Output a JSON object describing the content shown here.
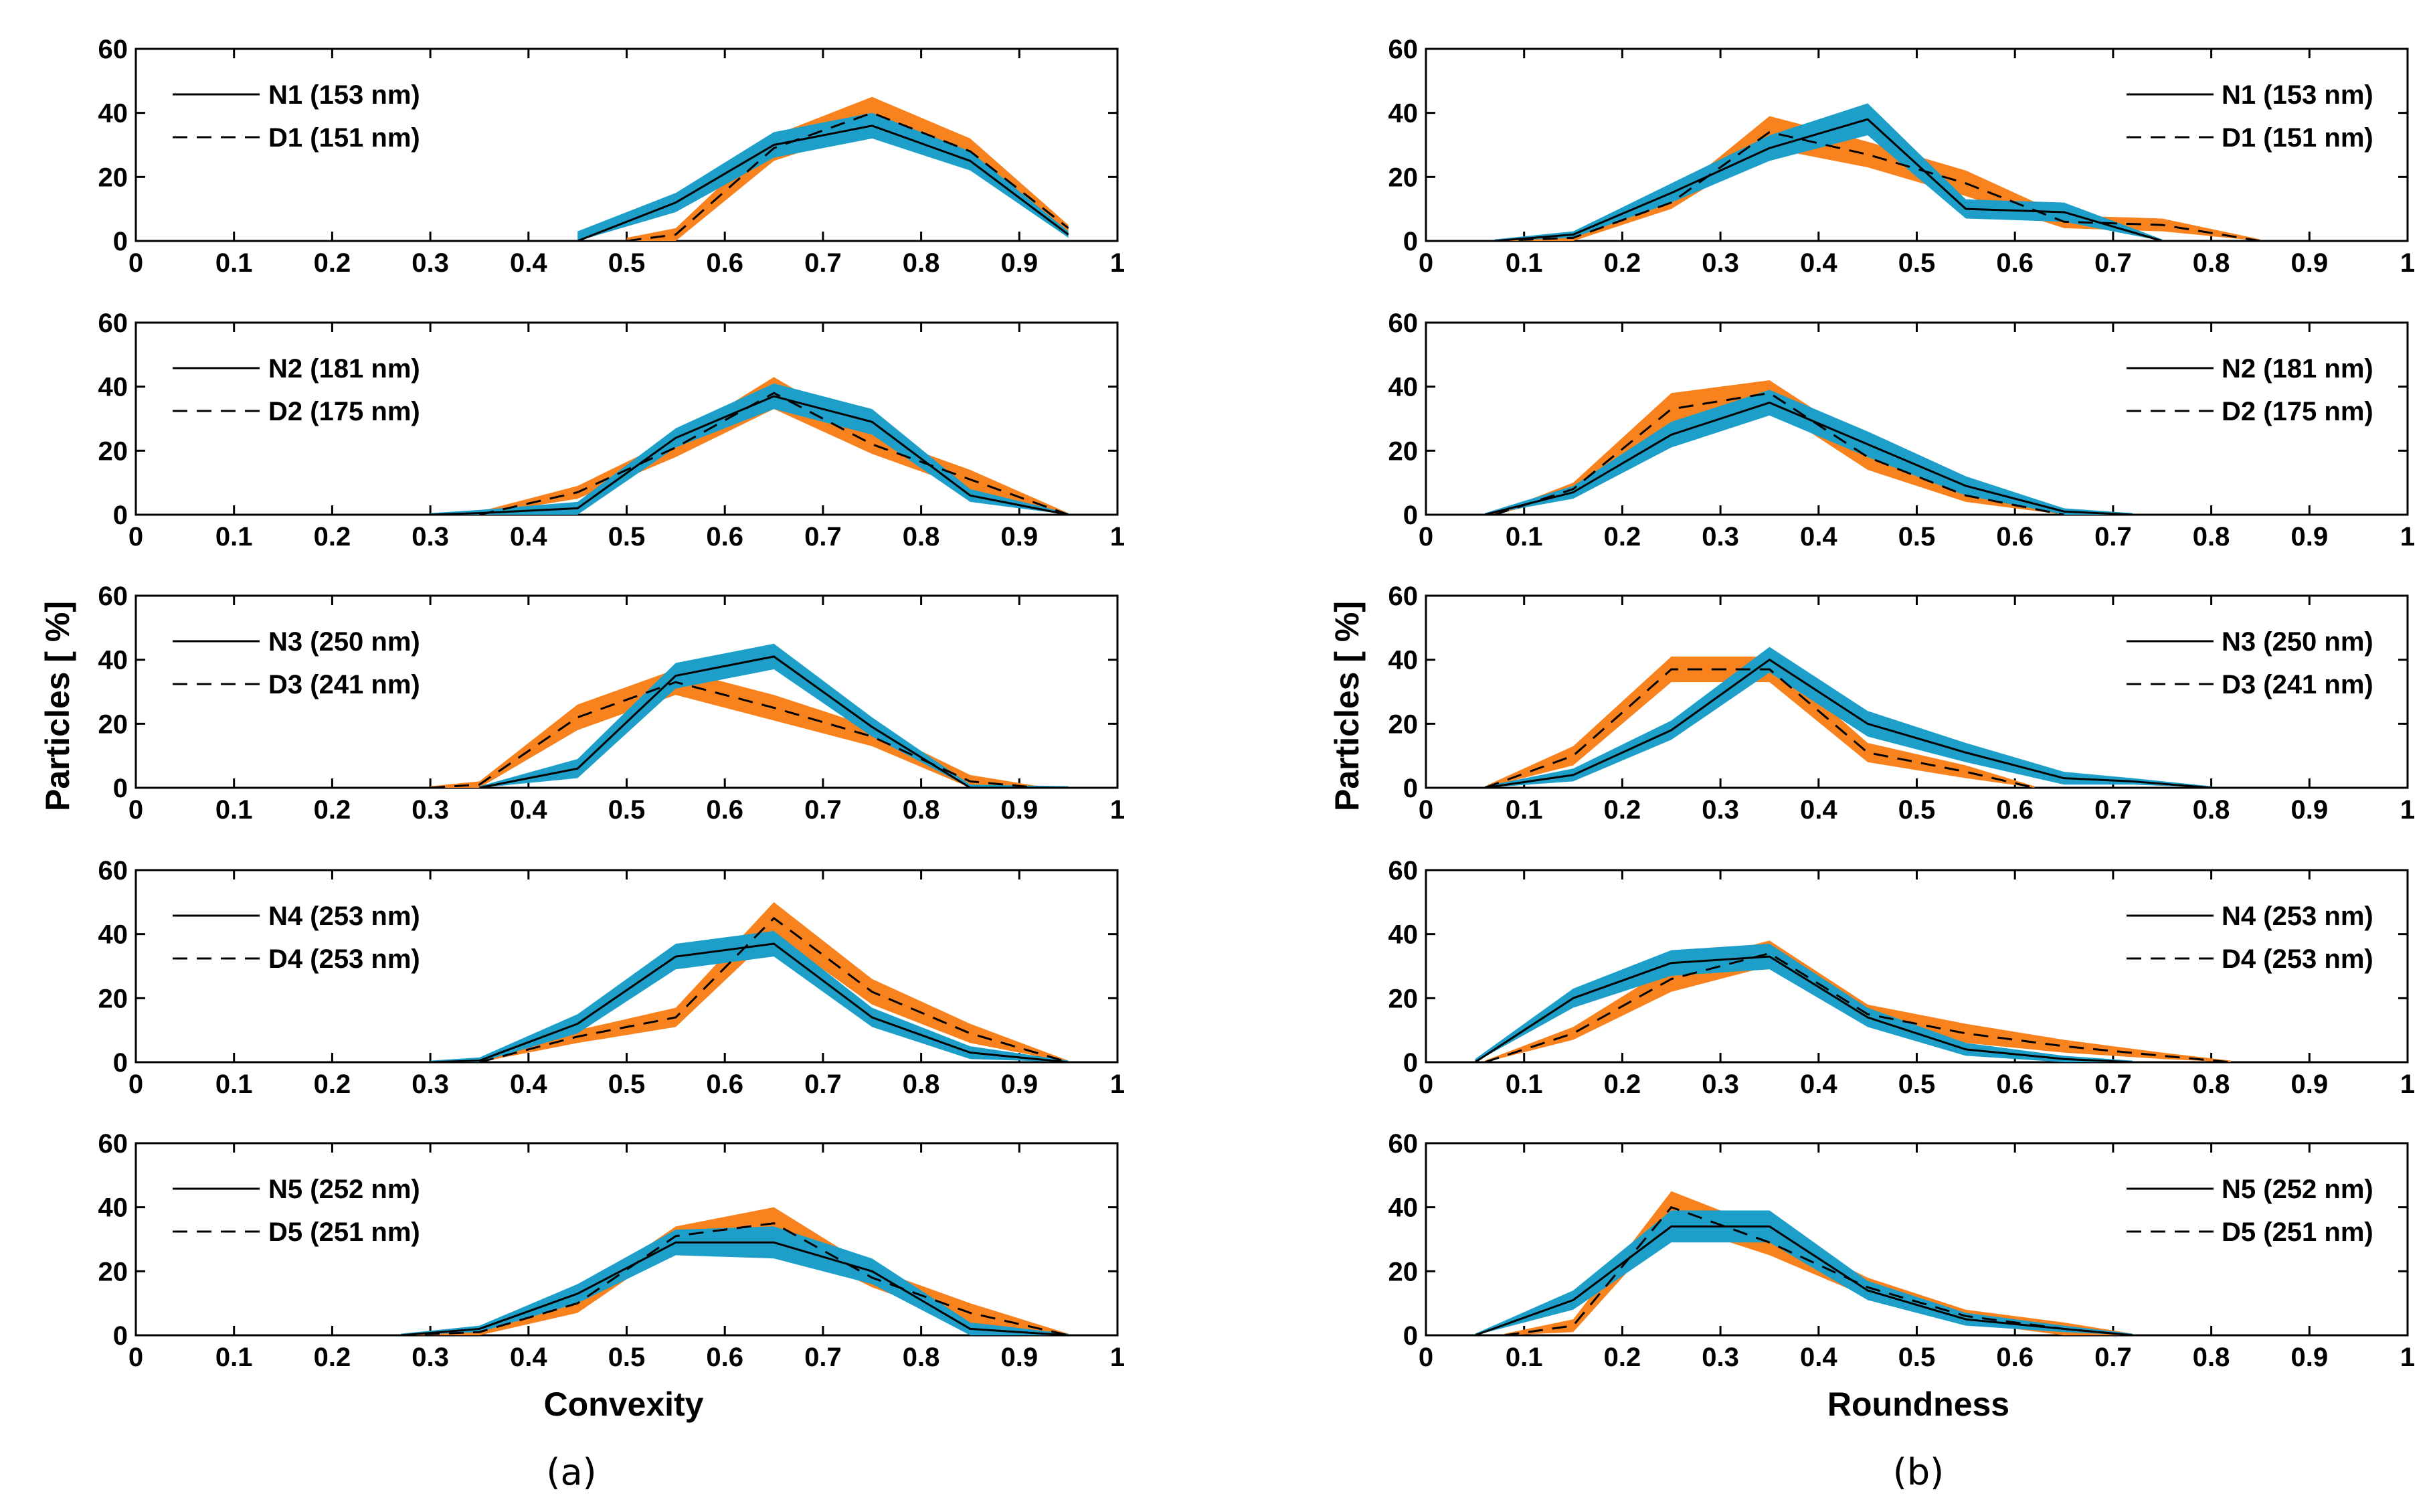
{
  "figure": {
    "left_panel_label": "(a)",
    "right_panel_label": "(b)"
  },
  "colors": {
    "N_band": "#1e9fc9",
    "D_band": "#f7821e",
    "line": "#000000"
  },
  "chart_data": [
    {
      "type": "line",
      "panel": "a",
      "xlabel": "Convexity",
      "ylabel": "Particles [ %]",
      "xlim": [
        0,
        1
      ],
      "ylim": [
        0,
        60
      ],
      "xticks": [
        "0",
        "0.1",
        "0.2",
        "0.3",
        "0.4",
        "0.5",
        "0.6",
        "0.7",
        "0.8",
        "0.9",
        "1"
      ],
      "yticks": [
        "0",
        "20",
        "40",
        "60"
      ],
      "subplots": [
        {
          "legend": [
            "N1 (153 nm)",
            "D1 (151 nm)"
          ],
          "series": [
            {
              "name": "N1 (153 nm)",
              "style": "solid",
              "x": [
                0.45,
                0.55,
                0.65,
                0.75,
                0.85,
                0.95
              ],
              "values": [
                0,
                12,
                30,
                36,
                25,
                2
              ],
              "band": [
                3,
                3,
                4,
                4,
                3,
                1
              ]
            },
            {
              "name": "D1 (151 nm)",
              "style": "dashed",
              "x": [
                0.5,
                0.55,
                0.65,
                0.75,
                0.85,
                0.95
              ],
              "values": [
                0,
                2,
                29,
                40,
                28,
                4
              ],
              "band": [
                1,
                2,
                4,
                5,
                4,
                1
              ]
            }
          ]
        },
        {
          "legend": [
            "N2 (181 nm)",
            "D2 (175 nm)"
          ],
          "series": [
            {
              "name": "N2 (181 nm)",
              "style": "solid",
              "x": [
                0.3,
                0.35,
                0.45,
                0.55,
                0.65,
                0.75,
                0.85,
                0.95
              ],
              "values": [
                0,
                0.5,
                2,
                24,
                37,
                29,
                6,
                0
              ],
              "band": [
                0.5,
                1,
                2,
                3,
                4,
                4,
                2,
                0.5
              ]
            },
            {
              "name": "D2 (175 nm)",
              "style": "dashed",
              "x": [
                0.35,
                0.45,
                0.55,
                0.65,
                0.75,
                0.85,
                0.95
              ],
              "values": [
                0,
                7,
                21,
                38,
                22,
                11,
                0
              ],
              "band": [
                1,
                2,
                3,
                5,
                3,
                3,
                0.5
              ]
            }
          ]
        },
        {
          "legend": [
            "N3 (250 nm)",
            "D3 (241 nm)"
          ],
          "series": [
            {
              "name": "N3 (250 nm)",
              "style": "solid",
              "x": [
                0.35,
                0.45,
                0.55,
                0.65,
                0.75,
                0.85,
                0.95
              ],
              "values": [
                0,
                6,
                35,
                41,
                19,
                0,
                0
              ],
              "band": [
                0.5,
                3,
                4,
                4,
                3,
                1,
                0.5
              ]
            },
            {
              "name": "D3 (241 nm)",
              "style": "dashed",
              "x": [
                0.3,
                0.35,
                0.45,
                0.55,
                0.65,
                0.75,
                0.85,
                0.92
              ],
              "values": [
                0,
                1,
                22,
                33,
                25,
                16,
                2,
                0
              ],
              "band": [
                0.5,
                1,
                4,
                4,
                4,
                3,
                2,
                0.5
              ]
            }
          ]
        },
        {
          "legend": [
            "N4 (253 nm)",
            "D4 (253 nm)"
          ],
          "series": [
            {
              "name": "N4 (253 nm)",
              "style": "solid",
              "x": [
                0.3,
                0.35,
                0.45,
                0.55,
                0.65,
                0.75,
                0.85,
                0.95
              ],
              "values": [
                0,
                0.5,
                12,
                33,
                37,
                14,
                3,
                0
              ],
              "band": [
                0.5,
                1,
                3,
                4,
                4,
                3,
                2,
                0.5
              ]
            },
            {
              "name": "D4 (253 nm)",
              "style": "dashed",
              "x": [
                0.35,
                0.45,
                0.55,
                0.65,
                0.75,
                0.85,
                0.95
              ],
              "values": [
                0,
                8,
                14,
                45,
                22,
                9,
                0
              ],
              "band": [
                1,
                2,
                3,
                5,
                4,
                3,
                0.5
              ]
            }
          ]
        },
        {
          "legend": [
            "N5 (252 nm)",
            "D5 (251 nm)"
          ],
          "series": [
            {
              "name": "N5 (252 nm)",
              "style": "solid",
              "x": [
                0.27,
                0.35,
                0.45,
                0.55,
                0.65,
                0.75,
                0.85,
                0.95
              ],
              "values": [
                0,
                2,
                13,
                29,
                29,
                20,
                2,
                0
              ],
              "band": [
                0.5,
                1,
                3,
                4,
                5,
                4,
                2,
                0.5
              ]
            },
            {
              "name": "D5 (251 nm)",
              "style": "dashed",
              "x": [
                0.27,
                0.35,
                0.45,
                0.55,
                0.65,
                0.75,
                0.85,
                0.95
              ],
              "values": [
                0,
                1,
                10,
                31,
                35,
                18,
                7,
                0
              ],
              "band": [
                0.5,
                1,
                3,
                3,
                5,
                3,
                3,
                0.5
              ]
            }
          ]
        }
      ]
    },
    {
      "type": "line",
      "panel": "b",
      "xlabel": "Roundness",
      "ylabel": "Particles [ %]",
      "xlim": [
        0,
        1
      ],
      "ylim": [
        0,
        60
      ],
      "xticks": [
        "0",
        "0.1",
        "0.2",
        "0.3",
        "0.4",
        "0.5",
        "0.6",
        "0.7",
        "0.8",
        "0.9",
        "1"
      ],
      "yticks": [
        "0",
        "20",
        "40",
        "60"
      ],
      "subplots": [
        {
          "legend": [
            "N1 (153 nm)",
            "D1 (151 nm)"
          ],
          "series": [
            {
              "name": "N1 (153 nm)",
              "style": "solid",
              "x": [
                0.07,
                0.15,
                0.25,
                0.35,
                0.45,
                0.55,
                0.65,
                0.75
              ],
              "values": [
                0,
                2,
                15,
                29,
                38,
                10,
                9,
                0
              ],
              "band": [
                0.5,
                1,
                3,
                4,
                5,
                3,
                3,
                0.5
              ]
            },
            {
              "name": "D1 (151 nm)",
              "style": "dashed",
              "x": [
                0.07,
                0.15,
                0.25,
                0.35,
                0.45,
                0.55,
                0.65,
                0.75,
                0.85
              ],
              "values": [
                0,
                1,
                12,
                34,
                27,
                18,
                6,
                5,
                0
              ],
              "band": [
                0.5,
                1,
                2,
                5,
                4,
                4,
                2,
                2,
                0.5
              ]
            }
          ]
        },
        {
          "legend": [
            "N2 (181 nm)",
            "D2 (175 nm)"
          ],
          "series": [
            {
              "name": "N2 (181 nm)",
              "style": "solid",
              "x": [
                0.06,
                0.15,
                0.25,
                0.35,
                0.45,
                0.55,
                0.65,
                0.72
              ],
              "values": [
                0,
                7,
                25,
                35,
                22,
                9,
                1,
                0
              ],
              "band": [
                0.5,
                2,
                4,
                4,
                4,
                3,
                1,
                0.5
              ]
            },
            {
              "name": "D2 (175 nm)",
              "style": "dashed",
              "x": [
                0.07,
                0.15,
                0.25,
                0.35,
                0.45,
                0.55,
                0.65
              ],
              "values": [
                0,
                8,
                33,
                38,
                18,
                6,
                0
              ],
              "band": [
                0.5,
                2,
                5,
                4,
                4,
                2,
                0.5
              ]
            }
          ]
        },
        {
          "legend": [
            "N3 (250 nm)",
            "D3 (241 nm)"
          ],
          "series": [
            {
              "name": "N3 (250 nm)",
              "style": "solid",
              "x": [
                0.06,
                0.15,
                0.25,
                0.35,
                0.45,
                0.55,
                0.65,
                0.72,
                0.8
              ],
              "values": [
                0,
                4,
                18,
                40,
                20,
                11,
                3,
                2,
                0
              ],
              "band": [
                0.5,
                2,
                3,
                4,
                4,
                3,
                2,
                1,
                0.5
              ]
            },
            {
              "name": "D3 (241 nm)",
              "style": "dashed",
              "x": [
                0.06,
                0.15,
                0.25,
                0.35,
                0.45,
                0.55,
                0.62
              ],
              "values": [
                0,
                10,
                37,
                37,
                11,
                5,
                0
              ],
              "band": [
                0.5,
                3,
                4,
                4,
                3,
                2,
                0.5
              ]
            }
          ]
        },
        {
          "legend": [
            "N4 (253 nm)",
            "D4 (253 nm)"
          ],
          "series": [
            {
              "name": "N4 (253 nm)",
              "style": "solid",
              "x": [
                0.05,
                0.15,
                0.25,
                0.35,
                0.45,
                0.55,
                0.65,
                0.72
              ],
              "values": [
                0,
                20,
                31,
                33,
                14,
                4,
                1,
                0
              ],
              "band": [
                1,
                3,
                4,
                4,
                3,
                2,
                1,
                0.5
              ]
            },
            {
              "name": "D4 (253 nm)",
              "style": "dashed",
              "x": [
                0.06,
                0.15,
                0.25,
                0.35,
                0.45,
                0.55,
                0.65,
                0.75,
                0.82
              ],
              "values": [
                0,
                9,
                26,
                34,
                15,
                9,
                5,
                2,
                0
              ],
              "band": [
                0.5,
                2,
                4,
                4,
                3,
                3,
                2,
                1,
                0.5
              ]
            }
          ]
        },
        {
          "legend": [
            "N5 (252 nm)",
            "D5 (251 nm)"
          ],
          "series": [
            {
              "name": "N5 (252 nm)",
              "style": "solid",
              "x": [
                0.05,
                0.15,
                0.25,
                0.35,
                0.45,
                0.55,
                0.65,
                0.72
              ],
              "values": [
                0,
                11,
                34,
                34,
                14,
                5,
                2,
                0
              ],
              "band": [
                0.5,
                3,
                5,
                5,
                3,
                2,
                1,
                0.5
              ]
            },
            {
              "name": "D5 (251 nm)",
              "style": "dashed",
              "x": [
                0.08,
                0.15,
                0.25,
                0.35,
                0.45,
                0.55,
                0.65,
                0.72
              ],
              "values": [
                0,
                3,
                40,
                29,
                15,
                6,
                2,
                0
              ],
              "band": [
                0.5,
                2,
                5,
                4,
                3,
                2,
                2,
                0.5
              ]
            }
          ]
        }
      ]
    }
  ]
}
